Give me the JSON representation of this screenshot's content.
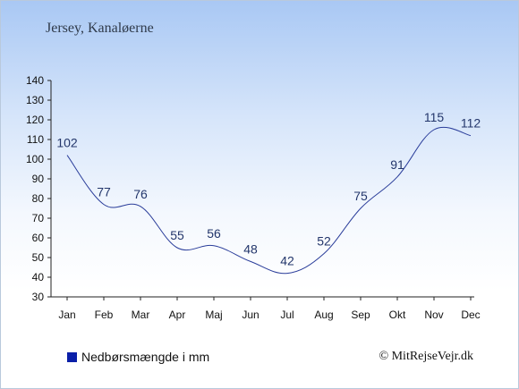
{
  "header": {
    "location": "Jersey, Kanaløerne"
  },
  "legend": {
    "label": "Nedbørsmængde i mm",
    "color": "#0a1fa8"
  },
  "footer": {
    "copyright": "© MitRejseVejr.dk"
  },
  "colors": {
    "line": "#2a3d9a",
    "axis": "#222222"
  },
  "chart_data": {
    "type": "line",
    "categories": [
      "Jan",
      "Feb",
      "Mar",
      "Apr",
      "Maj",
      "Jun",
      "Jul",
      "Aug",
      "Sep",
      "Okt",
      "Nov",
      "Dec"
    ],
    "series": [
      {
        "name": "Nedbørsmængde i mm",
        "values": [
          102,
          77,
          76,
          55,
          56,
          48,
          42,
          52,
          75,
          91,
          115,
          112
        ]
      }
    ],
    "ylim": [
      30,
      140
    ],
    "yticks": [
      30,
      40,
      50,
      60,
      70,
      80,
      90,
      100,
      110,
      120,
      130,
      140
    ],
    "grid": false,
    "legend_position": "bottom-left"
  }
}
